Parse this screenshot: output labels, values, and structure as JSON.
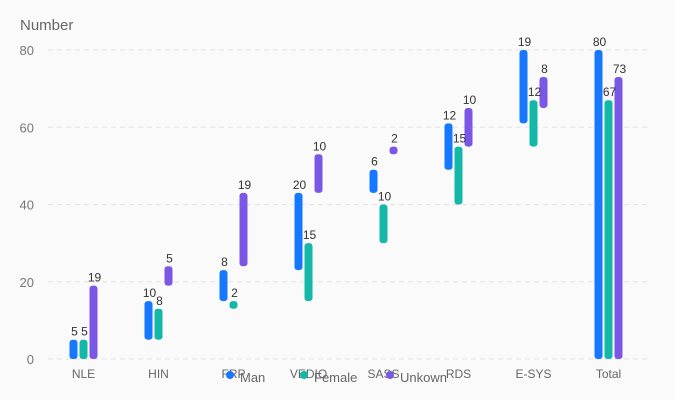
{
  "chart_data": {
    "type": "bar",
    "subtype": "waterfall",
    "ylabel": "Number",
    "ylim": [
      0,
      80
    ],
    "yticks": [
      0,
      20,
      40,
      60,
      80
    ],
    "grid": "horizontal dashed",
    "legend_position": "bottom",
    "categories": [
      "NLE",
      "HIN",
      "FRP",
      "VEDIO",
      "SASS",
      "RDS",
      "E-SYS",
      "Total"
    ],
    "series": [
      {
        "name": "Man",
        "color": "#1677ff",
        "values": [
          5,
          10,
          8,
          20,
          6,
          12,
          19,
          80
        ],
        "ranges": [
          [
            0,
            5
          ],
          [
            5,
            15
          ],
          [
            15,
            23
          ],
          [
            23,
            43
          ],
          [
            43,
            49
          ],
          [
            49,
            61
          ],
          [
            61,
            80
          ],
          [
            0,
            80
          ]
        ]
      },
      {
        "name": "Female",
        "color": "#13b8a8",
        "values": [
          5,
          8,
          2,
          15,
          10,
          15,
          12,
          67
        ],
        "ranges": [
          [
            0,
            5
          ],
          [
            5,
            13
          ],
          [
            13,
            15
          ],
          [
            15,
            30
          ],
          [
            30,
            40
          ],
          [
            40,
            55
          ],
          [
            55,
            67
          ],
          [
            0,
            67
          ]
        ]
      },
      {
        "name": "Unkown",
        "color": "#7b57e6",
        "values": [
          19,
          5,
          19,
          10,
          2,
          10,
          8,
          73
        ],
        "ranges": [
          [
            0,
            19
          ],
          [
            19,
            24
          ],
          [
            24,
            43
          ],
          [
            43,
            53
          ],
          [
            53,
            55
          ],
          [
            55,
            65
          ],
          [
            65,
            73
          ],
          [
            0,
            73
          ]
        ]
      }
    ]
  }
}
